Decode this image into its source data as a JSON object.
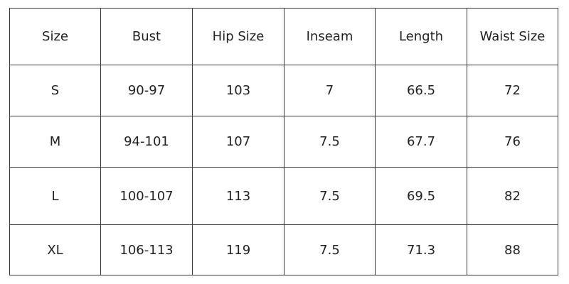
{
  "table": {
    "header": [
      "Size",
      "Bust",
      "Hip Size",
      "Inseam",
      "Length",
      "Waist Size"
    ],
    "rows": [
      [
        "S",
        "90-97",
        "103",
        "7",
        "66.5",
        "72"
      ],
      [
        "M",
        "94-101",
        "107",
        "7.5",
        "67.7",
        "76"
      ],
      [
        "L",
        "100-107",
        "113",
        "7.5",
        "69.5",
        "82"
      ],
      [
        "XL",
        "106-113",
        "119",
        "7.5",
        "71.3",
        "88"
      ]
    ]
  }
}
